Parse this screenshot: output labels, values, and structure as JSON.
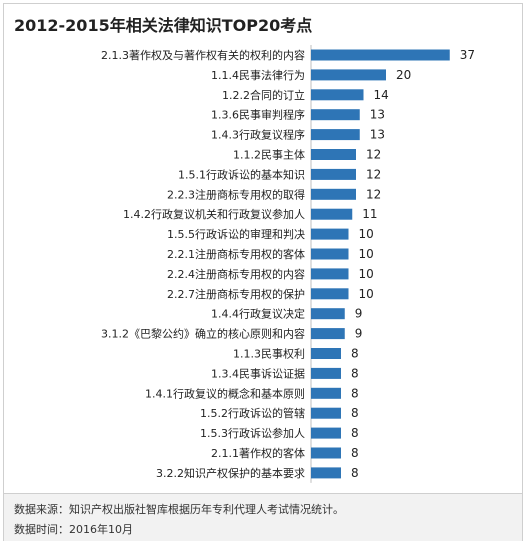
{
  "title": "2012-2015年相关法律知识TOP20考点",
  "footer": {
    "source": "数据来源：知识产权出版社智库根据历年专利代理人考试情况统计。",
    "date": "数据时间：2016年10月"
  },
  "colors": {
    "bar": "#2e75b6",
    "text": "#222222"
  },
  "chart_data": {
    "type": "bar",
    "orientation": "horizontal",
    "title": "2012-2015年相关法律知识TOP20考点",
    "categories": [
      "2.1.3著作权及与著作权有关的权利的内容",
      "1.1.4民事法律行为",
      "1.2.2合同的订立",
      "1.3.6民事审判程序",
      "1.4.3行政复议程序",
      "1.1.2民事主体",
      "1.5.1行政诉讼的基本知识",
      "2.2.3注册商标专用权的取得",
      "1.4.2行政复议机关和行政复议参加人",
      "1.5.5行政诉讼的审理和判决",
      "2.2.1注册商标专用权的客体",
      "2.2.4注册商标专用权的内容",
      "2.2.7注册商标专用权的保护",
      "1.4.4行政复议决定",
      "3.1.2《巴黎公约》确立的核心原则和内容",
      "1.1.3民事权利",
      "1.3.4民事诉讼证据",
      "1.4.1行政复议的概念和基本原则",
      "1.5.2行政诉讼的管辖",
      "1.5.3行政诉讼参加人",
      "2.1.1著作权的客体",
      "3.2.2知识产权保护的基本要求"
    ],
    "values": [
      37,
      20,
      14,
      13,
      13,
      12,
      12,
      12,
      11,
      10,
      10,
      10,
      10,
      9,
      9,
      8,
      8,
      8,
      8,
      8,
      8,
      8
    ],
    "xlim": [
      0,
      40
    ],
    "grid": false,
    "legend": "none"
  }
}
